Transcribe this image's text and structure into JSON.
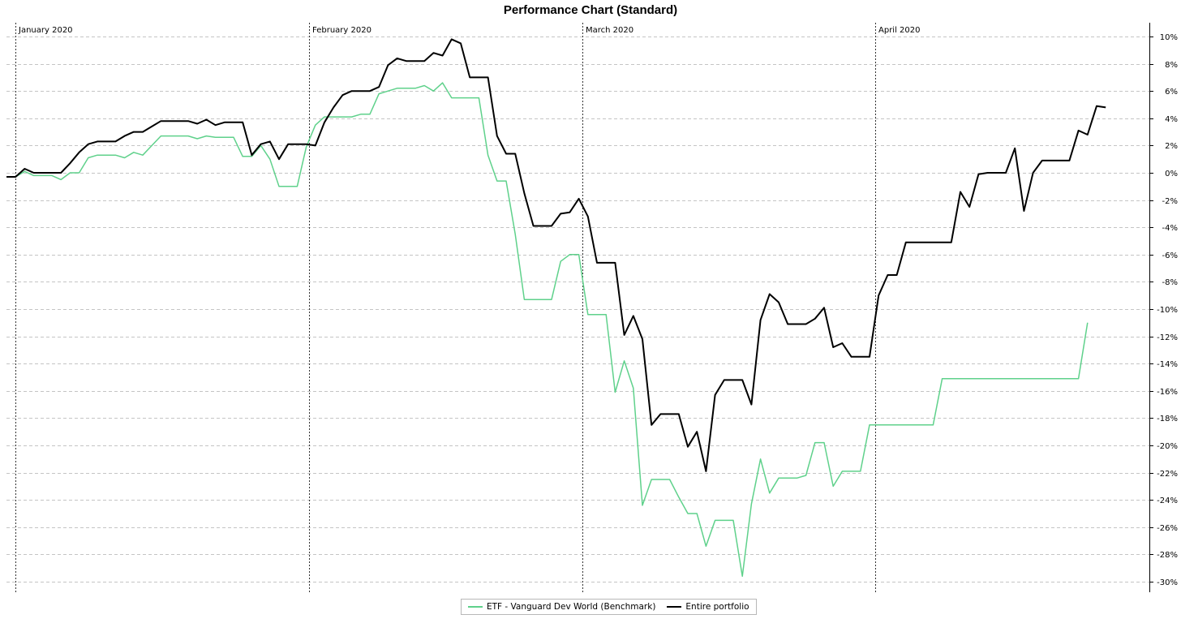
{
  "chart_data": {
    "type": "line",
    "title": "Performance Chart (Standard)",
    "month_labels": [
      "January 2020",
      "February 2020",
      "March 2020",
      "April 2020"
    ],
    "y_tick_labels": [
      "10%",
      "8%",
      "6%",
      "4%",
      "2%",
      "0%",
      "-2%",
      "-4%",
      "-6%",
      "-8%",
      "-10%",
      "-12%",
      "-14%",
      "-16%",
      "-18%",
      "-20%",
      "-22%",
      "-24%",
      "-26%",
      "-28%",
      "-30%"
    ],
    "ylim": [
      -30,
      10
    ],
    "y_unit": "%",
    "grid": true,
    "legend_position": "bottom",
    "series": [
      {
        "name": "ETF - Vanguard Dev World (Benchmark)",
        "color": "#5fd18b",
        "values": [
          -0.3,
          -0.3,
          0.1,
          -0.2,
          -0.2,
          -0.2,
          -0.5,
          0.0,
          0.0,
          1.1,
          1.3,
          1.3,
          1.3,
          1.1,
          1.5,
          1.3,
          2.0,
          2.7,
          2.7,
          2.7,
          2.7,
          2.5,
          2.7,
          2.6,
          2.6,
          2.6,
          1.2,
          1.2,
          2.0,
          1.0,
          -1.0,
          -1.0,
          -1.0,
          1.9,
          3.5,
          4.1,
          4.1,
          4.1,
          4.1,
          4.3,
          4.3,
          5.8,
          6.0,
          6.2,
          6.2,
          6.2,
          6.4,
          6.0,
          6.6,
          5.5,
          5.5,
          5.5,
          5.5,
          1.3,
          -0.6,
          -0.6,
          -4.5,
          -9.3,
          -9.3,
          -9.3,
          -9.3,
          -6.5,
          -6.0,
          -6.0,
          -10.4,
          -10.4,
          -10.4,
          -16.1,
          -13.8,
          -15.8,
          -24.4,
          -22.5,
          -22.5,
          -22.5,
          -23.8,
          -25.0,
          -25.0,
          -27.4,
          -25.5,
          -25.5,
          -25.5,
          -29.6,
          -24.3,
          -21.0,
          -23.5,
          -22.4,
          -22.4,
          -22.4,
          -22.2,
          -19.8,
          -19.8,
          -23.0,
          -21.9,
          -21.9,
          -21.9,
          -18.5,
          -18.5,
          -18.5,
          -18.5,
          -18.5,
          -18.5,
          -18.5,
          -18.5,
          -15.1,
          -15.1,
          -15.1,
          -15.1,
          -15.1,
          -15.1,
          -15.1,
          -15.1,
          -15.1,
          -15.1,
          -15.1,
          -15.1,
          -15.1,
          -15.1,
          -15.1,
          -15.1,
          -11.0
        ]
      },
      {
        "name": "Entire portfolio",
        "color": "#000000",
        "values": [
          -0.3,
          -0.3,
          0.3,
          0.0,
          0.0,
          0.0,
          0.0,
          0.7,
          1.5,
          2.1,
          2.3,
          2.3,
          2.3,
          2.7,
          3.0,
          3.0,
          3.4,
          3.8,
          3.8,
          3.8,
          3.8,
          3.6,
          3.9,
          3.5,
          3.7,
          3.7,
          3.7,
          1.3,
          2.1,
          2.3,
          1.0,
          2.1,
          2.1,
          2.1,
          2.0,
          3.7,
          4.8,
          5.7,
          6.0,
          6.0,
          6.0,
          6.3,
          7.9,
          8.4,
          8.2,
          8.2,
          8.2,
          8.8,
          8.6,
          9.8,
          9.5,
          7.0,
          7.0,
          7.0,
          2.7,
          1.4,
          1.4,
          -1.5,
          -3.9,
          -3.9,
          -3.9,
          -3.0,
          -2.9,
          -1.9,
          -3.2,
          -6.6,
          -6.6,
          -6.6,
          -11.9,
          -10.5,
          -12.2,
          -18.5,
          -17.7,
          -17.7,
          -17.7,
          -20.1,
          -19.0,
          -21.9,
          -16.3,
          -15.2,
          -15.2,
          -15.2,
          -17.0,
          -10.8,
          -8.9,
          -9.5,
          -11.1,
          -11.1,
          -11.1,
          -10.7,
          -9.9,
          -12.8,
          -12.5,
          -13.5,
          -13.5,
          -13.5,
          -9.0,
          -7.5,
          -7.5,
          -5.1,
          -5.1,
          -5.1,
          -5.1,
          -5.1,
          -5.1,
          -1.4,
          -2.5,
          -0.1,
          0.0,
          0.0,
          0.0,
          1.8,
          -2.8,
          0.0,
          0.9,
          0.9,
          0.9,
          0.9,
          3.1,
          2.8,
          4.9,
          4.8
        ]
      }
    ]
  }
}
